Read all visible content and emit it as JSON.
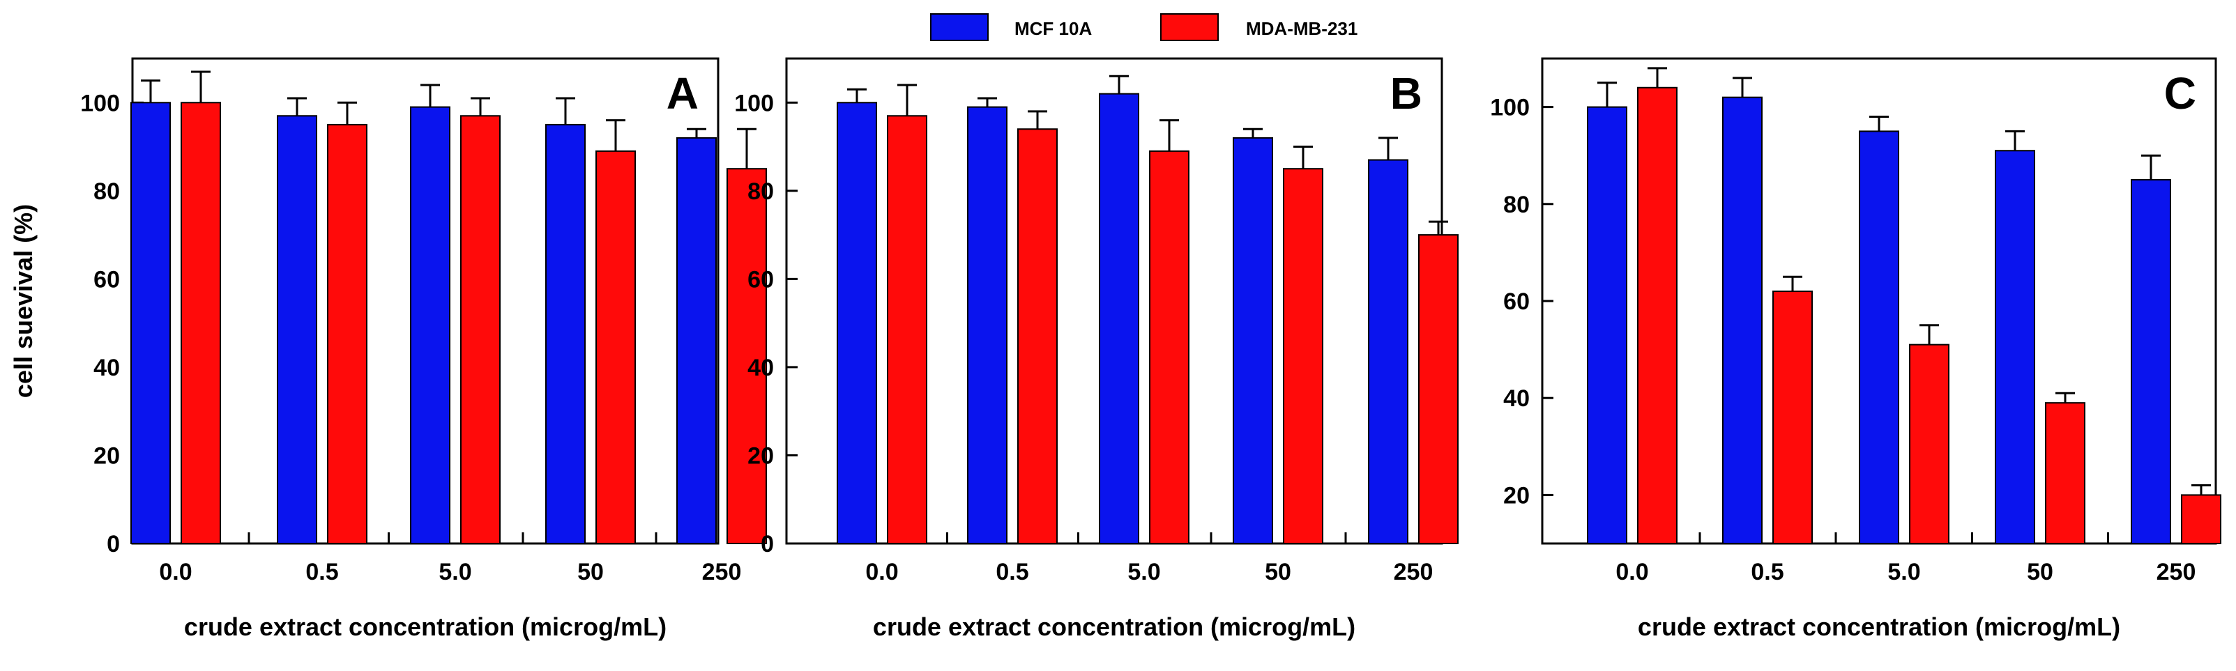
{
  "legend": {
    "items": [
      {
        "label": "MCF 10A",
        "color": "#0a14ee"
      },
      {
        "label": "MDA-MB-231",
        "color": "#ff0a0a"
      }
    ]
  },
  "chart_data": [
    {
      "type": "bar",
      "panel": "A",
      "categories": [
        "0.0",
        "0.5",
        "5.0",
        "50",
        "250"
      ],
      "series": [
        {
          "name": "MCF 10A",
          "values": [
            100,
            97,
            99,
            95,
            92
          ],
          "errors": [
            5,
            4,
            5,
            6,
            2
          ]
        },
        {
          "name": "MDA-MB-231",
          "values": [
            100,
            95,
            97,
            89,
            85
          ],
          "errors": [
            7,
            5,
            4,
            7,
            9
          ]
        }
      ],
      "xlabel": "crude extract concentration (microg/mL)",
      "ylabel": "cell suevival (%)",
      "ylim": [
        0,
        110
      ],
      "yticks": [
        "0",
        "20",
        "40",
        "60",
        "80",
        "100"
      ]
    },
    {
      "type": "bar",
      "panel": "B",
      "categories": [
        "0.0",
        "0.5",
        "5.0",
        "50",
        "250"
      ],
      "series": [
        {
          "name": "MCF 10A",
          "values": [
            100,
            99,
            102,
            92,
            87
          ],
          "errors": [
            3,
            2,
            4,
            2,
            5
          ]
        },
        {
          "name": "MDA-MB-231",
          "values": [
            97,
            94,
            89,
            85,
            70
          ],
          "errors": [
            7,
            4,
            7,
            5,
            3
          ]
        }
      ],
      "xlabel": "crude extract concentration (microg/mL)",
      "ylabel": "",
      "ylim": [
        0,
        110
      ],
      "yticks": [
        "0",
        "20",
        "40",
        "60",
        "80",
        "100"
      ]
    },
    {
      "type": "bar",
      "panel": "C",
      "categories": [
        "0.0",
        "0.5",
        "5.0",
        "50",
        "250"
      ],
      "series": [
        {
          "name": "MCF 10A",
          "values": [
            100,
            102,
            95,
            91,
            85
          ],
          "errors": [
            5,
            4,
            3,
            4,
            5
          ]
        },
        {
          "name": "MDA-MB-231",
          "values": [
            104,
            62,
            51,
            39,
            20
          ],
          "errors": [
            4,
            3,
            4,
            2,
            2
          ]
        }
      ],
      "xlabel": "crude extract concentration (microg/mL)",
      "ylabel": "",
      "ylim": [
        10,
        110
      ],
      "yticks": [
        "20",
        "40",
        "60",
        "80",
        "100"
      ]
    }
  ]
}
